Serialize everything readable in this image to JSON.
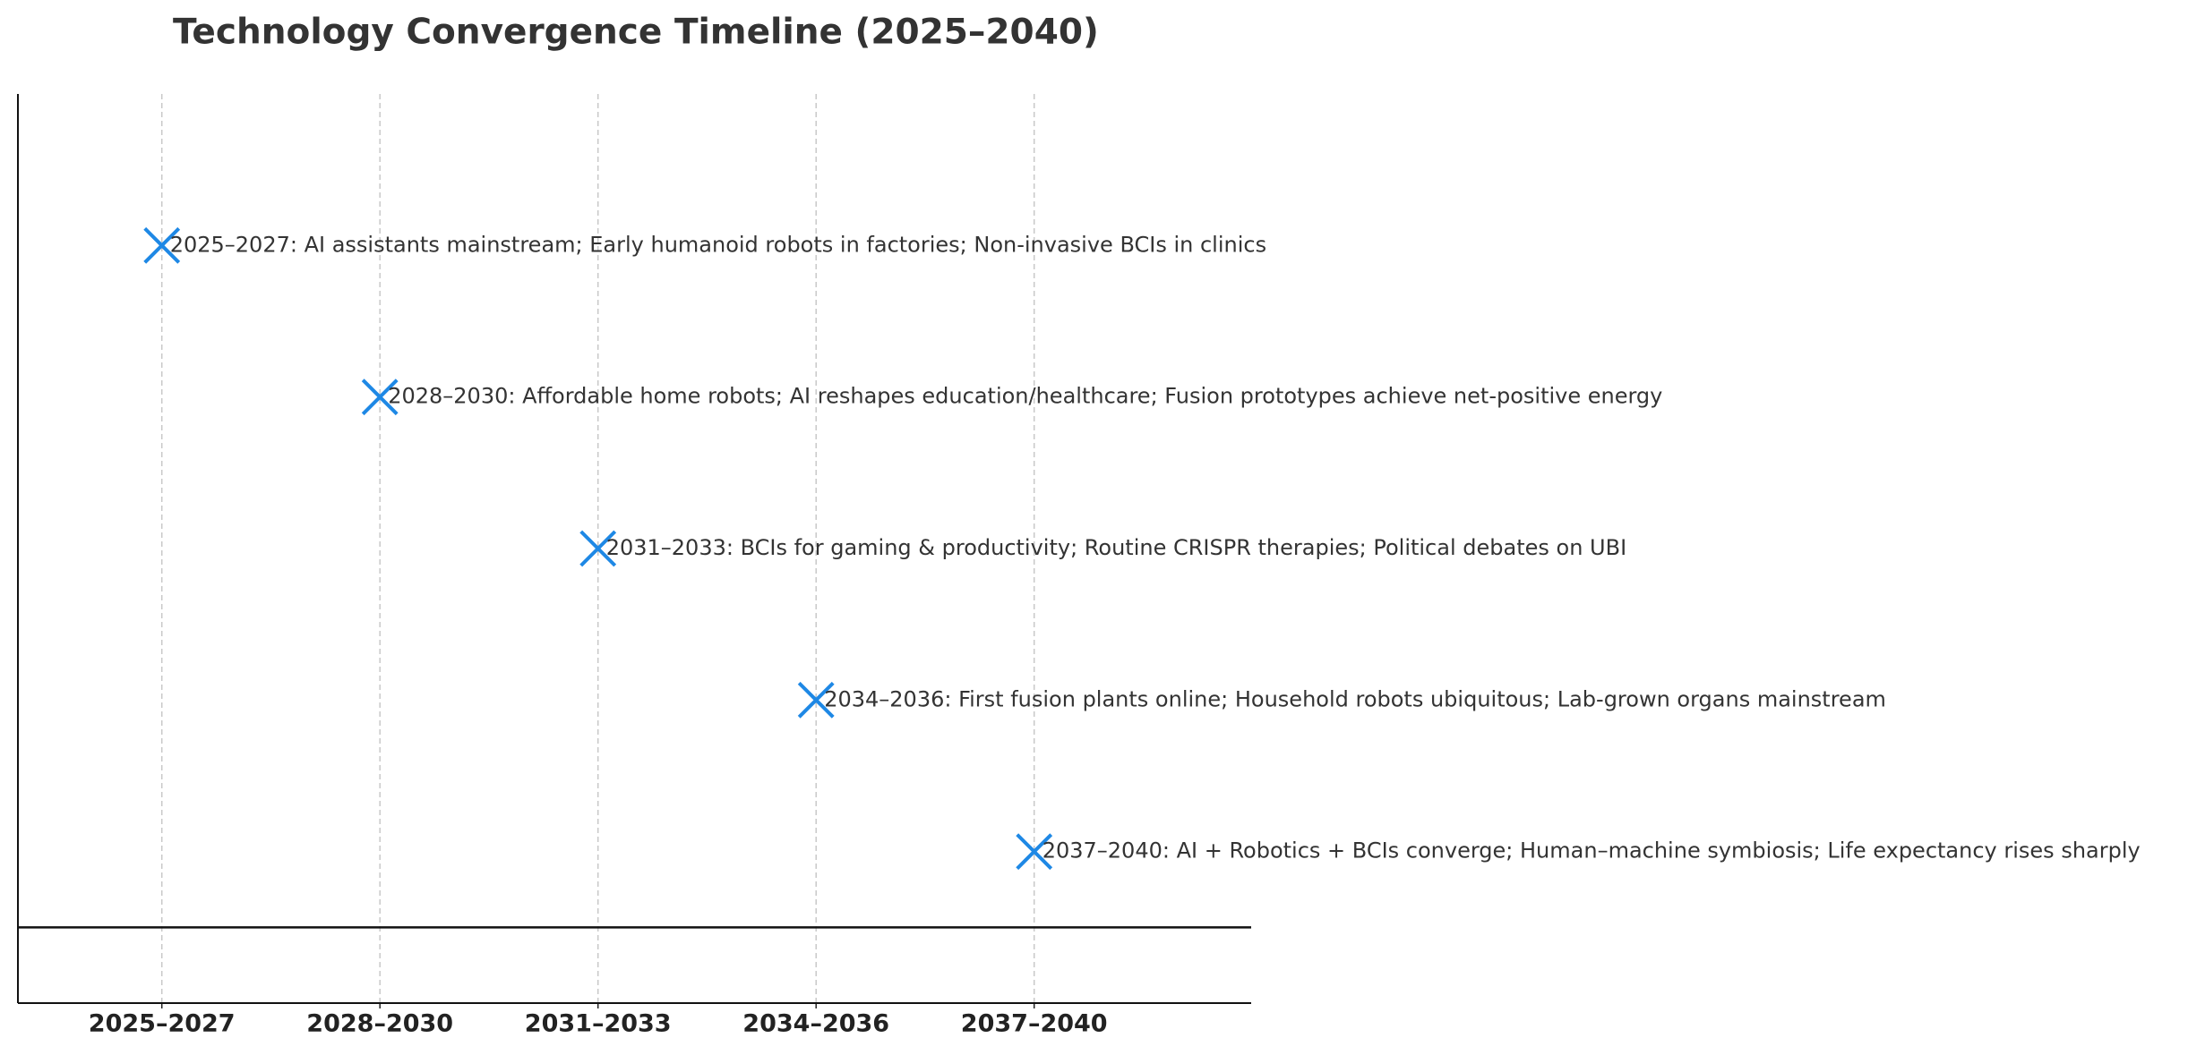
{
  "chart_data": {
    "type": "timeline",
    "title": "Technology Convergence Timeline (2025–2040)",
    "categories": [
      "2025–2027",
      "2028–2030",
      "2031–2033",
      "2034–2036",
      "2037–2040"
    ],
    "values": [
      5,
      4,
      3,
      2,
      1
    ],
    "annotations": [
      "2025–2027: AI assistants mainstream; Early humanoid robots in factories; Non-invasive BCIs in clinics",
      "2028–2030: Affordable home robots; AI reshapes education/healthcare; Fusion prototypes achieve net-positive energy",
      "2031–2033: BCIs for gaming & productivity; Routine CRISPR therapies; Political debates on UBI",
      "2034–2036: First fusion plants online; Household robots ubiquitous; Lab-grown organs mainstream",
      "2037–2040: AI + Robotics + BCIs converge; Human–machine symbiosis; Life expectancy rises sharply"
    ],
    "color": "#1e88e5",
    "marker": "x",
    "ylim": [
      0,
      6
    ],
    "baseline": 0.5,
    "grid": true
  }
}
